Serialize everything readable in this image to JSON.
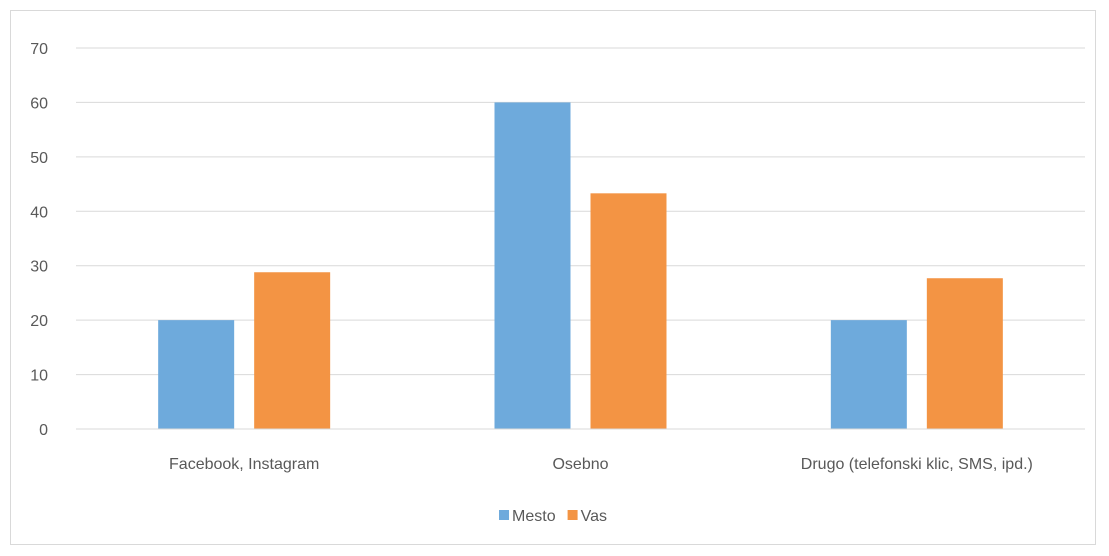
{
  "chart_data": {
    "type": "bar",
    "categories": [
      "Facebook, Instagram",
      "Osebno",
      "Drugo (telefonski klic, SMS, ipd.)"
    ],
    "series": [
      {
        "name": "Mesto",
        "values": [
          20,
          60,
          20
        ],
        "color": "#6eaadc"
      },
      {
        "name": "Vas",
        "values": [
          28.8,
          43.3,
          27.7
        ],
        "color": "#f39444"
      }
    ],
    "ylim": [
      0,
      70
    ],
    "yticks": [
      0,
      10,
      20,
      30,
      40,
      50,
      60,
      70
    ],
    "grid": true,
    "legend_position": "bottom",
    "gridline_color": "#d9d9d9",
    "axis_color": "#d9d9d9"
  }
}
